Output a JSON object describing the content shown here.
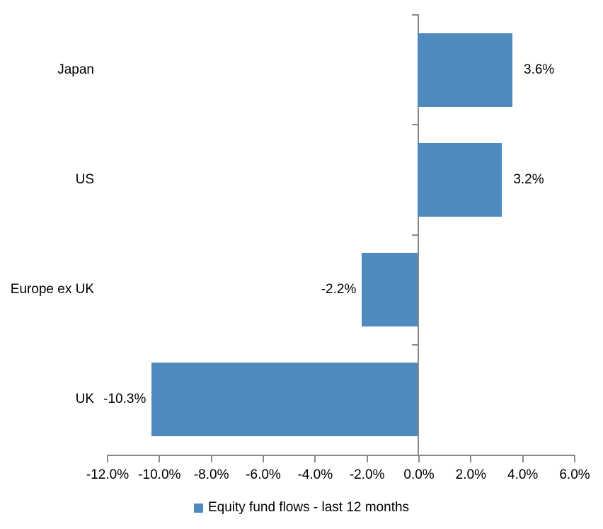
{
  "chart_data": {
    "type": "bar",
    "orientation": "horizontal",
    "title": "",
    "categories": [
      "Japan",
      "US",
      "Europe ex UK",
      "UK"
    ],
    "series": [
      {
        "name": "Equity fund flows - last 12 months",
        "values": [
          3.6,
          3.2,
          -2.2,
          -10.3
        ]
      }
    ],
    "data_labels": [
      "3.6%",
      "3.2%",
      "-2.2%",
      "-10.3%"
    ],
    "xlim": [
      -12,
      6
    ],
    "x_tick_step": 2,
    "x_tick_labels": [
      "-12.0%",
      "-10.0%",
      "-8.0%",
      "-6.0%",
      "-4.0%",
      "-2.0%",
      "0.0%",
      "2.0%",
      "4.0%",
      "6.0%"
    ],
    "grid": false,
    "legend": {
      "position": "bottom",
      "items": [
        {
          "label": "Equity fund flows - last 12 months",
          "color": "#4e8abd"
        }
      ]
    },
    "colors": {
      "bar": "#4e8abd",
      "axis": "#8a8a8a",
      "text": "#000000",
      "background": "#ffffff"
    }
  }
}
